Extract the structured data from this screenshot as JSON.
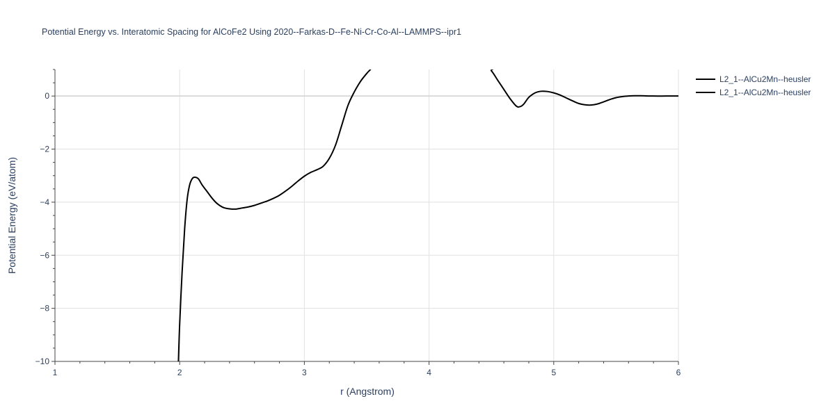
{
  "chart_data": {
    "type": "line",
    "title": "Potential Energy vs. Interatomic Spacing for AlCoFe2 Using 2020--Farkas-D--Fe-Ni-Cr-Co-Al--LAMMPS--ipr1",
    "xlabel": "r (Angstrom)",
    "ylabel": "Potential Energy (eV/atom)",
    "xlim": [
      1,
      6
    ],
    "ylim": [
      -10,
      1
    ],
    "x_ticks": [
      1,
      2,
      3,
      4,
      5,
      6
    ],
    "x_tick_labels": [
      "1",
      "2",
      "3",
      "4",
      "5",
      "6"
    ],
    "y_ticks": [
      -10,
      -8,
      -6,
      -4,
      -2,
      0
    ],
    "y_tick_labels": [
      "−10",
      "−8",
      "−6",
      "−4",
      "−2",
      "0"
    ],
    "grid": true,
    "legend_position": "top-right",
    "colors": {
      "line": "#000000",
      "grid": "#e1e1e1",
      "text": "#2a3f5f"
    },
    "series": [
      {
        "name": "L2_1--AlCu2Mn--heusler",
        "x": [
          1.99,
          2.0,
          2.02,
          2.04,
          2.06,
          2.08,
          2.1,
          2.12,
          2.15,
          2.18,
          2.22,
          2.26,
          2.3,
          2.35,
          2.4,
          2.45,
          2.5,
          2.55,
          2.6,
          2.65,
          2.7,
          2.75,
          2.8,
          2.85,
          2.9,
          2.95,
          3.0,
          3.05,
          3.1,
          3.15,
          3.2,
          3.25,
          3.3,
          3.35,
          3.4,
          3.45,
          3.5,
          3.53,
          3.55,
          4.45,
          4.5,
          4.55,
          4.6,
          4.65,
          4.7,
          4.73,
          4.76,
          4.8,
          4.85,
          4.9,
          4.95,
          5.0,
          5.05,
          5.1,
          5.15,
          5.2,
          5.25,
          5.3,
          5.35,
          5.4,
          5.45,
          5.5,
          5.55,
          5.6,
          5.65,
          5.7,
          5.8,
          5.9,
          6.0
        ],
        "y": [
          -10.0,
          -8.6,
          -6.6,
          -5.0,
          -3.9,
          -3.35,
          -3.12,
          -3.06,
          -3.12,
          -3.35,
          -3.6,
          -3.85,
          -4.05,
          -4.2,
          -4.25,
          -4.26,
          -4.22,
          -4.18,
          -4.12,
          -4.04,
          -3.96,
          -3.86,
          -3.74,
          -3.58,
          -3.4,
          -3.2,
          -3.02,
          -2.88,
          -2.78,
          -2.65,
          -2.35,
          -1.85,
          -1.1,
          -0.35,
          0.15,
          0.55,
          0.85,
          1.0,
          1.1,
          1.1,
          0.95,
          0.6,
          0.25,
          -0.1,
          -0.38,
          -0.4,
          -0.3,
          -0.05,
          0.12,
          0.18,
          0.17,
          0.12,
          0.04,
          -0.07,
          -0.18,
          -0.28,
          -0.33,
          -0.34,
          -0.3,
          -0.22,
          -0.13,
          -0.06,
          -0.02,
          0.0,
          0.01,
          0.01,
          0.0,
          0.0,
          0.0
        ]
      },
      {
        "name": "L2_1--AlCu2Mn--heusler",
        "x": [],
        "y": []
      }
    ]
  }
}
